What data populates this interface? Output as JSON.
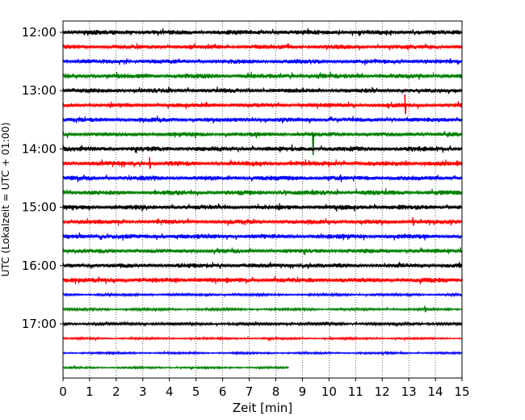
{
  "chart_data": {
    "type": "line",
    "title": "",
    "xlabel": "Zeit  [min]",
    "ylabel": "UTC (Lokalzeit = UTC + 01:00)",
    "xlim": [
      0,
      15
    ],
    "x_ticks": [
      "0",
      "1",
      "2",
      "3",
      "4",
      "5",
      "6",
      "7",
      "8",
      "9",
      "10",
      "11",
      "12",
      "13",
      "14",
      "15"
    ],
    "y_ticks": [
      {
        "label": "12:00",
        "row": 0
      },
      {
        "label": "13:00",
        "row": 4
      },
      {
        "label": "14:00",
        "row": 8
      },
      {
        "label": "15:00",
        "row": 12
      },
      {
        "label": "16:00",
        "row": 16
      },
      {
        "label": "17:00",
        "row": 20
      }
    ],
    "grid": {
      "x": true,
      "y": false,
      "style": "dotted"
    },
    "row_interval_min": 15,
    "row_colors": [
      "#000000",
      "#ff0000",
      "#0000ff",
      "#008000"
    ],
    "traces": [
      {
        "start": "12:00",
        "end_min": 15,
        "amplitude": 1.0
      },
      {
        "start": "12:15",
        "end_min": 15,
        "amplitude": 0.9
      },
      {
        "start": "12:30",
        "end_min": 15,
        "amplitude": 0.9
      },
      {
        "start": "12:45",
        "end_min": 15,
        "amplitude": 1.0
      },
      {
        "start": "13:00",
        "end_min": 15,
        "amplitude": 0.9
      },
      {
        "start": "13:15",
        "end_min": 15,
        "amplitude": 0.9,
        "events": [
          {
            "t": 12.85,
            "amp": 3.8
          }
        ]
      },
      {
        "start": "13:30",
        "end_min": 15,
        "amplitude": 0.9
      },
      {
        "start": "13:45",
        "end_min": 15,
        "amplitude": 0.9,
        "events": [
          {
            "t": 9.38,
            "amp": 4.0,
            "dir": -1
          }
        ]
      },
      {
        "start": "14:00",
        "end_min": 15,
        "amplitude": 1.0
      },
      {
        "start": "14:15",
        "end_min": 15,
        "amplitude": 1.0,
        "events": [
          {
            "t": 3.25,
            "amp": 2.2
          }
        ]
      },
      {
        "start": "14:30",
        "end_min": 15,
        "amplitude": 1.0
      },
      {
        "start": "14:45",
        "end_min": 15,
        "amplitude": 1.0
      },
      {
        "start": "15:00",
        "end_min": 15,
        "amplitude": 1.0
      },
      {
        "start": "15:15",
        "end_min": 15,
        "amplitude": 0.9,
        "events": [
          {
            "t": 13.15,
            "amp": 1.6
          }
        ]
      },
      {
        "start": "15:30",
        "end_min": 15,
        "amplitude": 1.0
      },
      {
        "start": "15:45",
        "end_min": 15,
        "amplitude": 0.9
      },
      {
        "start": "16:00",
        "end_min": 15,
        "amplitude": 0.9
      },
      {
        "start": "16:15",
        "end_min": 15,
        "amplitude": 1.0
      },
      {
        "start": "16:30",
        "end_min": 15,
        "amplitude": 0.5
      },
      {
        "start": "16:45",
        "end_min": 15,
        "amplitude": 0.5,
        "events": [
          {
            "t": 13.6,
            "amp": 1.2
          }
        ]
      },
      {
        "start": "17:00",
        "end_min": 15,
        "amplitude": 0.6
      },
      {
        "start": "17:15",
        "end_min": 15,
        "amplitude": 0.4
      },
      {
        "start": "17:30",
        "end_min": 15,
        "amplitude": 0.4
      },
      {
        "start": "17:45",
        "end_min": 8.5,
        "amplitude": 0.4
      }
    ]
  }
}
